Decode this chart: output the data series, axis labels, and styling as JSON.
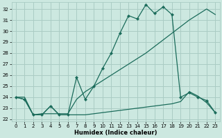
{
  "xlabel": "Humidex (Indice chaleur)",
  "background_color": "#cce8e0",
  "grid_color": "#aaccC4",
  "line_color": "#1a6b5a",
  "xlim": [
    -0.5,
    23.5
  ],
  "ylim": [
    21.8,
    32.6
  ],
  "yticks": [
    22,
    23,
    24,
    25,
    26,
    27,
    28,
    29,
    30,
    31,
    32
  ],
  "xticks": [
    0,
    1,
    2,
    3,
    4,
    5,
    6,
    7,
    8,
    9,
    10,
    11,
    12,
    13,
    14,
    15,
    16,
    17,
    18,
    19,
    20,
    21,
    22,
    23
  ],
  "series1_x": [
    0,
    1,
    2,
    3,
    4,
    5,
    6,
    7,
    8,
    9,
    10,
    11,
    12,
    13,
    14,
    15,
    16,
    17,
    18,
    19,
    20,
    21,
    22,
    23
  ],
  "series1_y": [
    24.0,
    23.8,
    22.4,
    22.4,
    23.2,
    22.4,
    22.4,
    25.8,
    23.8,
    25.0,
    26.6,
    28.0,
    29.8,
    31.4,
    31.1,
    32.4,
    31.6,
    32.2,
    31.5,
    24.0,
    24.4,
    24.0,
    23.7,
    22.6
  ],
  "series2_x": [
    0,
    1,
    2,
    3,
    4,
    5,
    6,
    7,
    8,
    9,
    10,
    11,
    12,
    13,
    14,
    15,
    16,
    17,
    18,
    19,
    20,
    21,
    22,
    23
  ],
  "series2_y": [
    24.0,
    24.0,
    22.4,
    22.5,
    22.5,
    22.5,
    22.5,
    23.8,
    24.5,
    25.0,
    25.5,
    26.0,
    26.5,
    27.0,
    27.5,
    28.0,
    28.6,
    29.2,
    29.8,
    30.4,
    31.0,
    31.5,
    32.0,
    31.5
  ],
  "series3_x": [
    0,
    1,
    2,
    3,
    4,
    5,
    6,
    7,
    8,
    9,
    10,
    11,
    12,
    13,
    14,
    15,
    16,
    17,
    18,
    19,
    20,
    21,
    22,
    23
  ],
  "series3_y": [
    24.0,
    23.8,
    22.4,
    22.4,
    23.2,
    22.4,
    22.4,
    22.4,
    22.4,
    22.5,
    22.6,
    22.7,
    22.8,
    22.9,
    23.0,
    23.1,
    23.2,
    23.3,
    23.4,
    23.6,
    24.5,
    24.1,
    23.5,
    22.6
  ]
}
